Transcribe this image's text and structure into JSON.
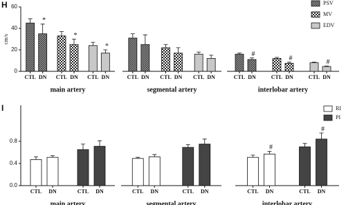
{
  "chart_data": [
    {
      "type": "bar",
      "panel": "H",
      "ylabel": "cm/s",
      "ylim": [
        0,
        60
      ],
      "yticks": [
        0,
        20,
        40,
        60
      ],
      "groups": [
        "main artery",
        "segmental artery",
        "interlobar artery"
      ],
      "categories": [
        "CTL",
        "DN"
      ],
      "series": [
        {
          "name": "PSV",
          "pattern": "crosshatch",
          "color": "#8c8c8c",
          "values": [
            [
              45,
              35
            ],
            [
              31,
              25
            ],
            [
              16,
              11
            ]
          ],
          "errors": [
            [
              4,
              9
            ],
            [
              4,
              9
            ],
            [
              1,
              1.5
            ]
          ],
          "annotations": [
            [
              null,
              "*"
            ],
            [
              null,
              null
            ],
            [
              null,
              "#"
            ]
          ]
        },
        {
          "name": "MV",
          "pattern": "checker",
          "color": "#ffffff",
          "values": [
            [
              33,
              25
            ],
            [
              22,
              17
            ],
            [
              12,
              7.5
            ]
          ],
          "errors": [
            [
              4,
              5
            ],
            [
              3,
              5
            ],
            [
              1,
              1
            ]
          ],
          "annotations": [
            [
              null,
              "*"
            ],
            [
              null,
              null
            ],
            [
              null,
              "#"
            ]
          ]
        },
        {
          "name": "EDV",
          "pattern": "solid",
          "color": "#c8c8c8",
          "values": [
            [
              24,
              17
            ],
            [
              16,
              12
            ],
            [
              8,
              4.5
            ]
          ],
          "errors": [
            [
              3,
              3
            ],
            [
              2,
              3
            ],
            [
              0.5,
              0.5
            ]
          ],
          "annotations": [
            [
              null,
              "*"
            ],
            [
              null,
              null
            ],
            [
              null,
              "#"
            ]
          ]
        }
      ]
    },
    {
      "type": "bar",
      "panel": "I",
      "ylim": [
        0,
        1.45
      ],
      "yticks": [
        {
          "value": 0,
          "label": "0.0"
        },
        0.4,
        0.8
      ],
      "groups": [
        "main artery",
        "segmental artery",
        "interlobar artery"
      ],
      "categories": [
        "CTL",
        "DN"
      ],
      "series": [
        {
          "name": "RI",
          "pattern": "solid",
          "color": "#ffffff",
          "values": [
            [
              0.47,
              0.51
            ],
            [
              0.49,
              0.52
            ],
            [
              0.51,
              0.57
            ]
          ],
          "errors": [
            [
              0.05,
              0.03
            ],
            [
              0.02,
              0.04
            ],
            [
              0.04,
              0.05
            ]
          ],
          "annotations": [
            [
              null,
              null
            ],
            [
              null,
              null
            ],
            [
              null,
              "#"
            ]
          ]
        },
        {
          "name": "PI",
          "pattern": "solid",
          "color": "#444444",
          "values": [
            [
              0.65,
              0.71
            ],
            [
              0.69,
              0.75
            ],
            [
              0.7,
              0.84
            ]
          ],
          "errors": [
            [
              0.1,
              0.1
            ],
            [
              0.05,
              0.09
            ],
            [
              0.06,
              0.11
            ]
          ],
          "annotations": [
            [
              null,
              null
            ],
            [
              null,
              null
            ],
            [
              null,
              "#"
            ]
          ]
        }
      ]
    }
  ]
}
